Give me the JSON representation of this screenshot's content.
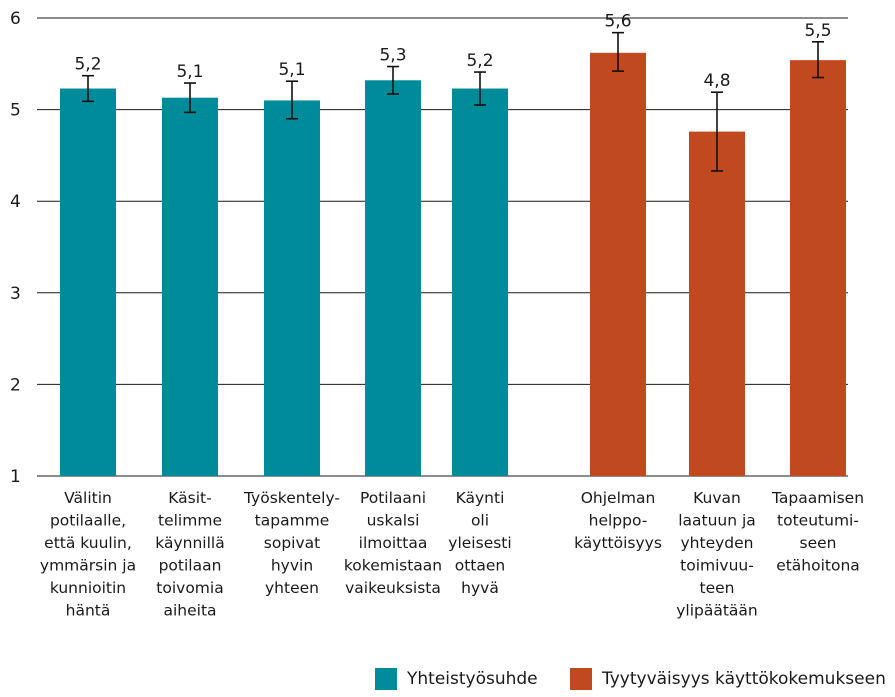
{
  "chart_data": {
    "type": "bar",
    "categories": [
      [
        "Välitin",
        "potilaalle,",
        "että kuulin,",
        "ymmärsin ja",
        "kunnioitin",
        "häntä"
      ],
      [
        "Käsit-",
        "telimme",
        "käynnillä",
        "potilaan",
        "toivomia",
        "aiheita"
      ],
      [
        "Työskentely-",
        "tapamme",
        "sopivat",
        "hyvin",
        "yhteen"
      ],
      [
        "Potilaani",
        "uskalsi",
        "ilmoittaa",
        "kokemistaan",
        "vaikeuksista"
      ],
      [
        "Käynti",
        "oli",
        "yleisesti",
        "ottaen",
        "hyvä"
      ],
      [
        "Ohjelman",
        "helppo-",
        "käyttöisyys"
      ],
      [
        "Kuvan",
        "laatuun ja",
        "yhteyden",
        "toimivuu-",
        "teen",
        "ylipäätään"
      ],
      [
        "Tapaamisen",
        "toteutumi-",
        "seen",
        "etähoitona"
      ]
    ],
    "values": [
      5.23,
      5.13,
      5.1,
      5.32,
      5.23,
      5.62,
      4.76,
      5.54
    ],
    "data_labels": [
      "5,2",
      "5,1",
      "5,1",
      "5,3",
      "5,2",
      "5,6",
      "4,8",
      "5,5"
    ],
    "error_low": [
      5.09,
      4.97,
      4.9,
      5.17,
      5.05,
      5.42,
      4.33,
      5.35
    ],
    "error_high": [
      5.37,
      5.29,
      5.31,
      5.47,
      5.41,
      5.84,
      5.19,
      5.74
    ],
    "group": [
      0,
      0,
      0,
      0,
      0,
      1,
      1,
      1
    ],
    "series": [
      {
        "name": "Yhteistyösuhde",
        "color": "#008b9a"
      },
      {
        "name": "Tyytyväisyys käyttökokemukseen",
        "color": "#c1491f"
      }
    ],
    "ylim": [
      1,
      6
    ],
    "yticks": [
      "1",
      "2",
      "3",
      "4",
      "5",
      "6"
    ],
    "grid": true,
    "legend_position": "bottom-right"
  }
}
